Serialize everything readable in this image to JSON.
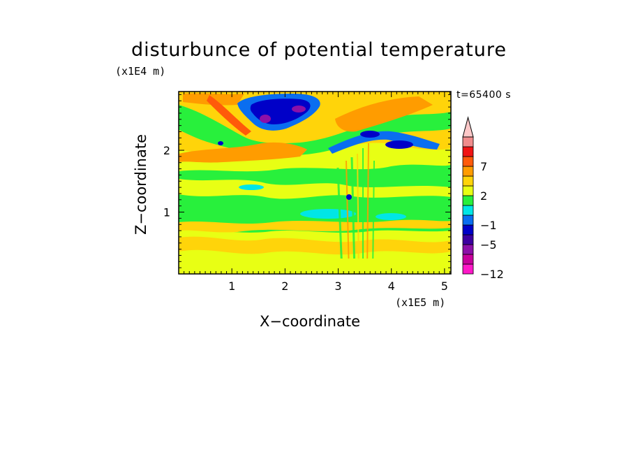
{
  "chart_data": {
    "type": "heatmap",
    "title": "disturbunce of potential temperature",
    "time_label": "t=65400 s",
    "xlabel": "X−coordinate",
    "ylabel": "Z−coordinate",
    "x_unit": "(x1E5 m)",
    "y_unit": "(x1E4 m)",
    "xlim": [
      0,
      5.12
    ],
    "ylim": [
      0,
      2.95
    ],
    "x_ticks": [
      "1",
      "2",
      "3",
      "4",
      "5"
    ],
    "y_ticks": [
      "1",
      "2"
    ],
    "grid": false,
    "colorbar": {
      "extend": "max",
      "levels": [
        -12,
        -9,
        -7,
        -5,
        -3,
        -1,
        0,
        1,
        2,
        3,
        5,
        7,
        9,
        12
      ],
      "labels": [
        "−12",
        "−5",
        "−1",
        "2",
        "7"
      ],
      "colors": [
        "#ff18c8",
        "#c8009c",
        "#8c10a8",
        "#3c00a0",
        "#0000c8",
        "#0a6ef0",
        "#00e6e6",
        "#28f03c",
        "#e8ff14",
        "#ffd40a",
        "#ff9c00",
        "#ff5a0a",
        "#f01414",
        "#f08c8c",
        "#fcc8c8"
      ]
    },
    "features": [
      {
        "x": 2.05,
        "z": 2.7,
        "level": -5,
        "note": "cold anomaly upper left-centre"
      },
      {
        "x": 1.6,
        "z": 2.5,
        "level": -9
      },
      {
        "x": 3.3,
        "z": 2.05,
        "level": -3
      },
      {
        "x": 4.0,
        "z": 2.15,
        "level": -5
      },
      {
        "x": 1.7,
        "z": 2.1,
        "level": 5
      },
      {
        "x": 3.6,
        "z": 2.6,
        "level": 5
      },
      {
        "x": 3.2,
        "z": 0.8,
        "level": 0
      }
    ]
  }
}
